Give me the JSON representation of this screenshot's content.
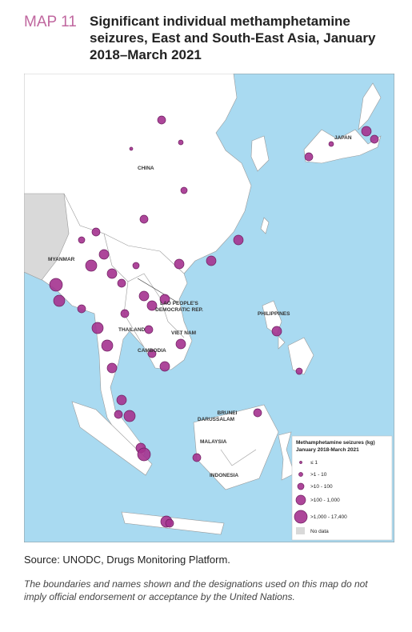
{
  "header": {
    "label": "MAP 11",
    "title": "Significant individual methamphetamine seizures, East and South-East Asia, January 2018–March 2021"
  },
  "map": {
    "labels": [
      {
        "lines": [
          "CHINA"
        ]
      },
      {
        "lines": [
          "JAPAN"
        ]
      },
      {
        "lines": [
          "MYANMAR"
        ]
      },
      {
        "lines": [
          "LAO PEOPLE'S",
          "DEMOCRATIC REP."
        ]
      },
      {
        "lines": [
          "PHILIPPINES"
        ]
      },
      {
        "lines": [
          "THAILAND"
        ]
      },
      {
        "lines": [
          "VIET NAM"
        ]
      },
      {
        "lines": [
          "CAMBODIA"
        ]
      },
      {
        "lines": [
          "BRUNEI",
          "DARUSSALAM"
        ]
      },
      {
        "lines": [
          "MALAYSIA"
        ]
      },
      {
        "lines": [
          "INDONESIA"
        ]
      }
    ]
  },
  "legend": {
    "title": [
      "Methamphetamine seizures (kg)",
      "January 2018-March 2021"
    ],
    "items": [
      "≤ 1",
      ">1 - 10",
      ">10 - 100",
      ">100 - 1,000",
      ">1,000 - 17,400"
    ],
    "no_data": "No data"
  },
  "footer": {
    "source": "Source: UNODC, Drugs Monitoring Platform.",
    "note": "The boundaries and names shown and the designations used on this map do not imply official endorsement or acceptance by the United Nations."
  }
}
